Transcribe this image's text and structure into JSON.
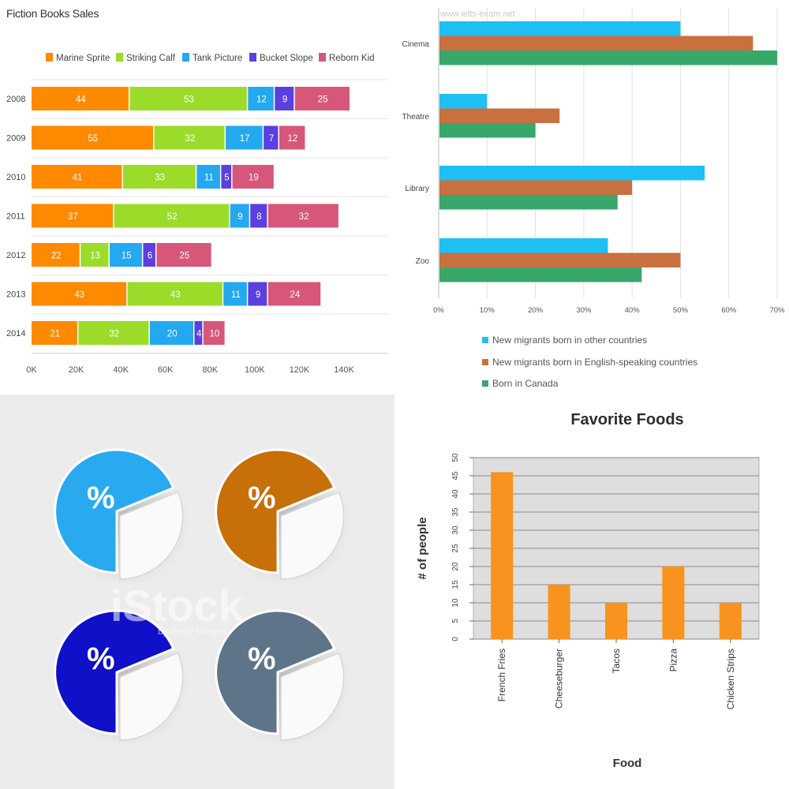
{
  "chart_data": [
    {
      "type": "bar",
      "orientation": "horizontal",
      "stacked": true,
      "title": "Fiction Books Sales",
      "categories": [
        "2008",
        "2009",
        "2010",
        "2011",
        "2012",
        "2013",
        "2014"
      ],
      "series": [
        {
          "name": "Marine Sprite",
          "color": "#ff8a00",
          "values": [
            44,
            55,
            41,
            37,
            22,
            43,
            21
          ]
        },
        {
          "name": "Striking Calf",
          "color": "#9bdc2a",
          "values": [
            53,
            32,
            33,
            52,
            13,
            43,
            32
          ]
        },
        {
          "name": "Tank Picture",
          "color": "#24a8f0",
          "values": [
            12,
            17,
            11,
            9,
            15,
            11,
            20
          ]
        },
        {
          "name": "Bucket Slope",
          "color": "#5b3fe0",
          "values": [
            9,
            7,
            5,
            8,
            6,
            9,
            4
          ]
        },
        {
          "name": "Reborn Kid",
          "color": "#d6577a",
          "values": [
            25,
            12,
            19,
            32,
            25,
            24,
            10
          ]
        }
      ],
      "value_scale": 1000,
      "xlim": [
        0,
        140000
      ],
      "xticks": [
        "0K",
        "20K",
        "40K",
        "60K",
        "80K",
        "100K",
        "120K",
        "140K"
      ],
      "legend": "top",
      "grid": true
    },
    {
      "type": "bar",
      "orientation": "horizontal",
      "watermark": "www.ielts-exam.net",
      "categories": [
        "Cinema",
        "Theatre",
        "Library",
        "Zoo"
      ],
      "series": [
        {
          "name": "New migrants born in other countries",
          "color": "#1ec0f2",
          "values": [
            50,
            10,
            55,
            35
          ]
        },
        {
          "name": "New migrants born in English-speaking countries",
          "color": "#c8703f",
          "values": [
            65,
            25,
            40,
            50
          ]
        },
        {
          "name": "Born in Canada",
          "color": "#37a86a",
          "values": [
            70,
            20,
            37,
            42
          ]
        }
      ],
      "xlim": [
        0,
        70
      ],
      "xticks": [
        "0%",
        "10%",
        "20%",
        "30%",
        "40%",
        "50%",
        "60%",
        "70%"
      ],
      "legend": "bottom",
      "grid": true
    },
    {
      "type": "bar",
      "title": "Favorite Foods",
      "xlabel": "Food",
      "ylabel": "# of people",
      "categories": [
        "French Fries",
        "Cheeseburger",
        "Tacos",
        "Pizza",
        "Chicken Strips"
      ],
      "values": [
        46,
        15,
        10,
        20,
        10
      ],
      "ylim": [
        0,
        50
      ],
      "yticks": [
        "0",
        "5",
        "10",
        "15",
        "20",
        "25",
        "30",
        "35",
        "40",
        "45",
        "50"
      ],
      "color": "#f7931e",
      "grid": true
    }
  ],
  "stock": {
    "watermark": "iStock",
    "watermark_sub": "by Getty Images",
    "icon_symbol": "%",
    "pie_colors": [
      "#29aaf0",
      "#c76f08",
      "#1010c8",
      "#5e7489"
    ]
  }
}
